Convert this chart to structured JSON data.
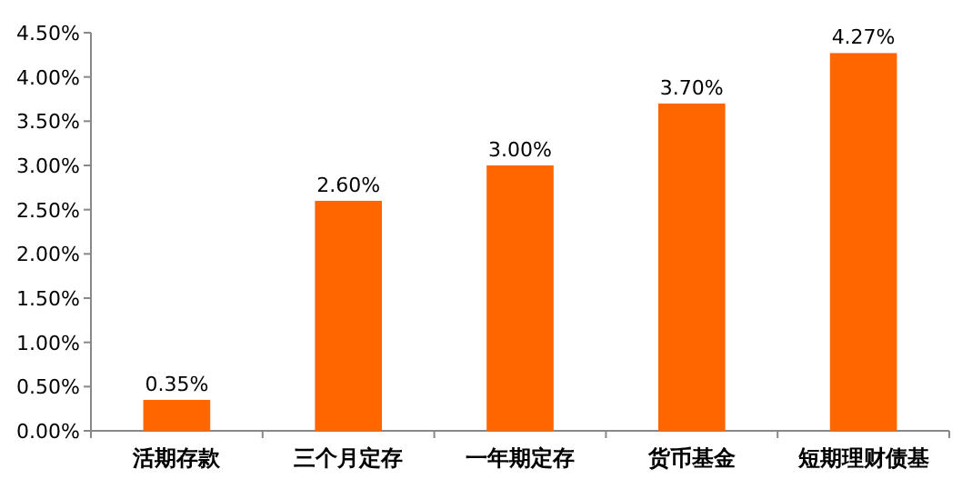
{
  "chart_data": {
    "type": "bar",
    "categories": [
      "活期存款",
      "三个月定存",
      "一年期定存",
      "货币基金",
      "短期理财债基"
    ],
    "values": [
      0.35,
      2.6,
      3.0,
      3.7,
      4.27
    ],
    "value_labels": [
      "0.35%",
      "2.60%",
      "3.00%",
      "3.70%",
      "4.27%"
    ],
    "color": "#ff6600",
    "ylim": [
      0,
      4.5
    ],
    "yticks": [
      {
        "value": 0,
        "label": "0.00%"
      },
      {
        "value": 0.5,
        "label": "0.50%"
      },
      {
        "value": 1,
        "label": "1.00%"
      },
      {
        "value": 1.5,
        "label": "1.50%"
      },
      {
        "value": 2,
        "label": "2.00%"
      },
      {
        "value": 2.5,
        "label": "2.50%"
      },
      {
        "value": 3,
        "label": "3.00%"
      },
      {
        "value": 3.5,
        "label": "3.50%"
      },
      {
        "value": 4,
        "label": "4.00%"
      },
      {
        "value": 4.5,
        "label": "4.50%"
      }
    ],
    "grid": false
  }
}
